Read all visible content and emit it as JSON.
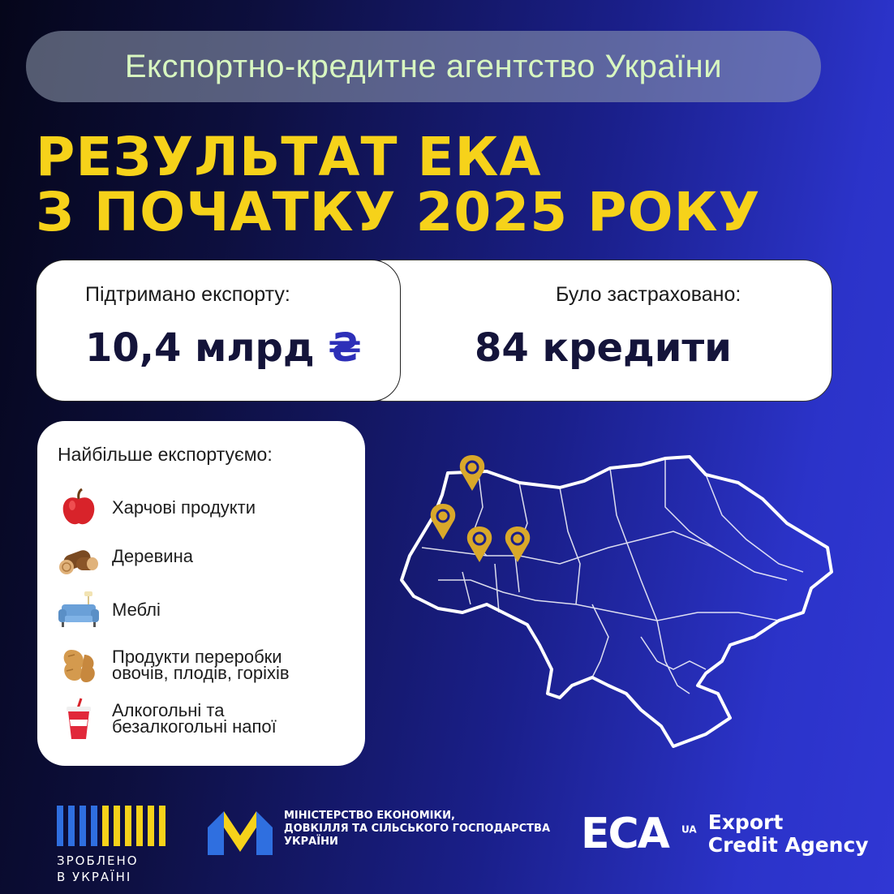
{
  "header": {
    "agency_name": "Експортно-кредитне агентство України",
    "title_line1": "РЕЗУЛЬТАТ ЕКА",
    "title_line2": "З ПОЧАТКУ 2025 РОКУ"
  },
  "stats": {
    "export_label": "Підтримано експорту:",
    "export_value": "10,4 млрд",
    "export_currency": "₴",
    "insured_label": "Було застраховано:",
    "insured_value_num": "84",
    "insured_value_word": "кредити"
  },
  "exports": {
    "title": "Найбільше експортуємо:",
    "items": [
      {
        "label": "Харчові продукти",
        "icon": "apple-icon"
      },
      {
        "label": "Деревина",
        "icon": "wood-logs-icon"
      },
      {
        "label": "Меблі",
        "icon": "sofa-icon"
      },
      {
        "label_line1": "Продукти переробки",
        "label_line2": "овочів, плодів, горіхів",
        "icon": "peanut-icon"
      },
      {
        "label_line1": "Алкогольні та",
        "label_line2": "безалкогольні напої",
        "icon": "drink-cup-icon"
      }
    ]
  },
  "footer": {
    "made_line1": "ЗРОБЛЕНО",
    "made_line2": "В УКРАЇНІ",
    "ministry_line1": "МІНІСТЕРСТВО ЕКОНОМІКИ,",
    "ministry_line2": "ДОВКІЛЛЯ ТА СІЛЬСЬКОГО ГОСПОДАРСТВА",
    "ministry_line3": "УКРАЇНИ",
    "eca_mark": "ECA",
    "eca_badge": "UA",
    "eca_line1": "Export",
    "eca_line2": "Credit Agency"
  },
  "colors": {
    "accent_yellow": "#f6d21a",
    "pin_gold": "#d9a82a",
    "value_blue": "#2d2fb8"
  }
}
